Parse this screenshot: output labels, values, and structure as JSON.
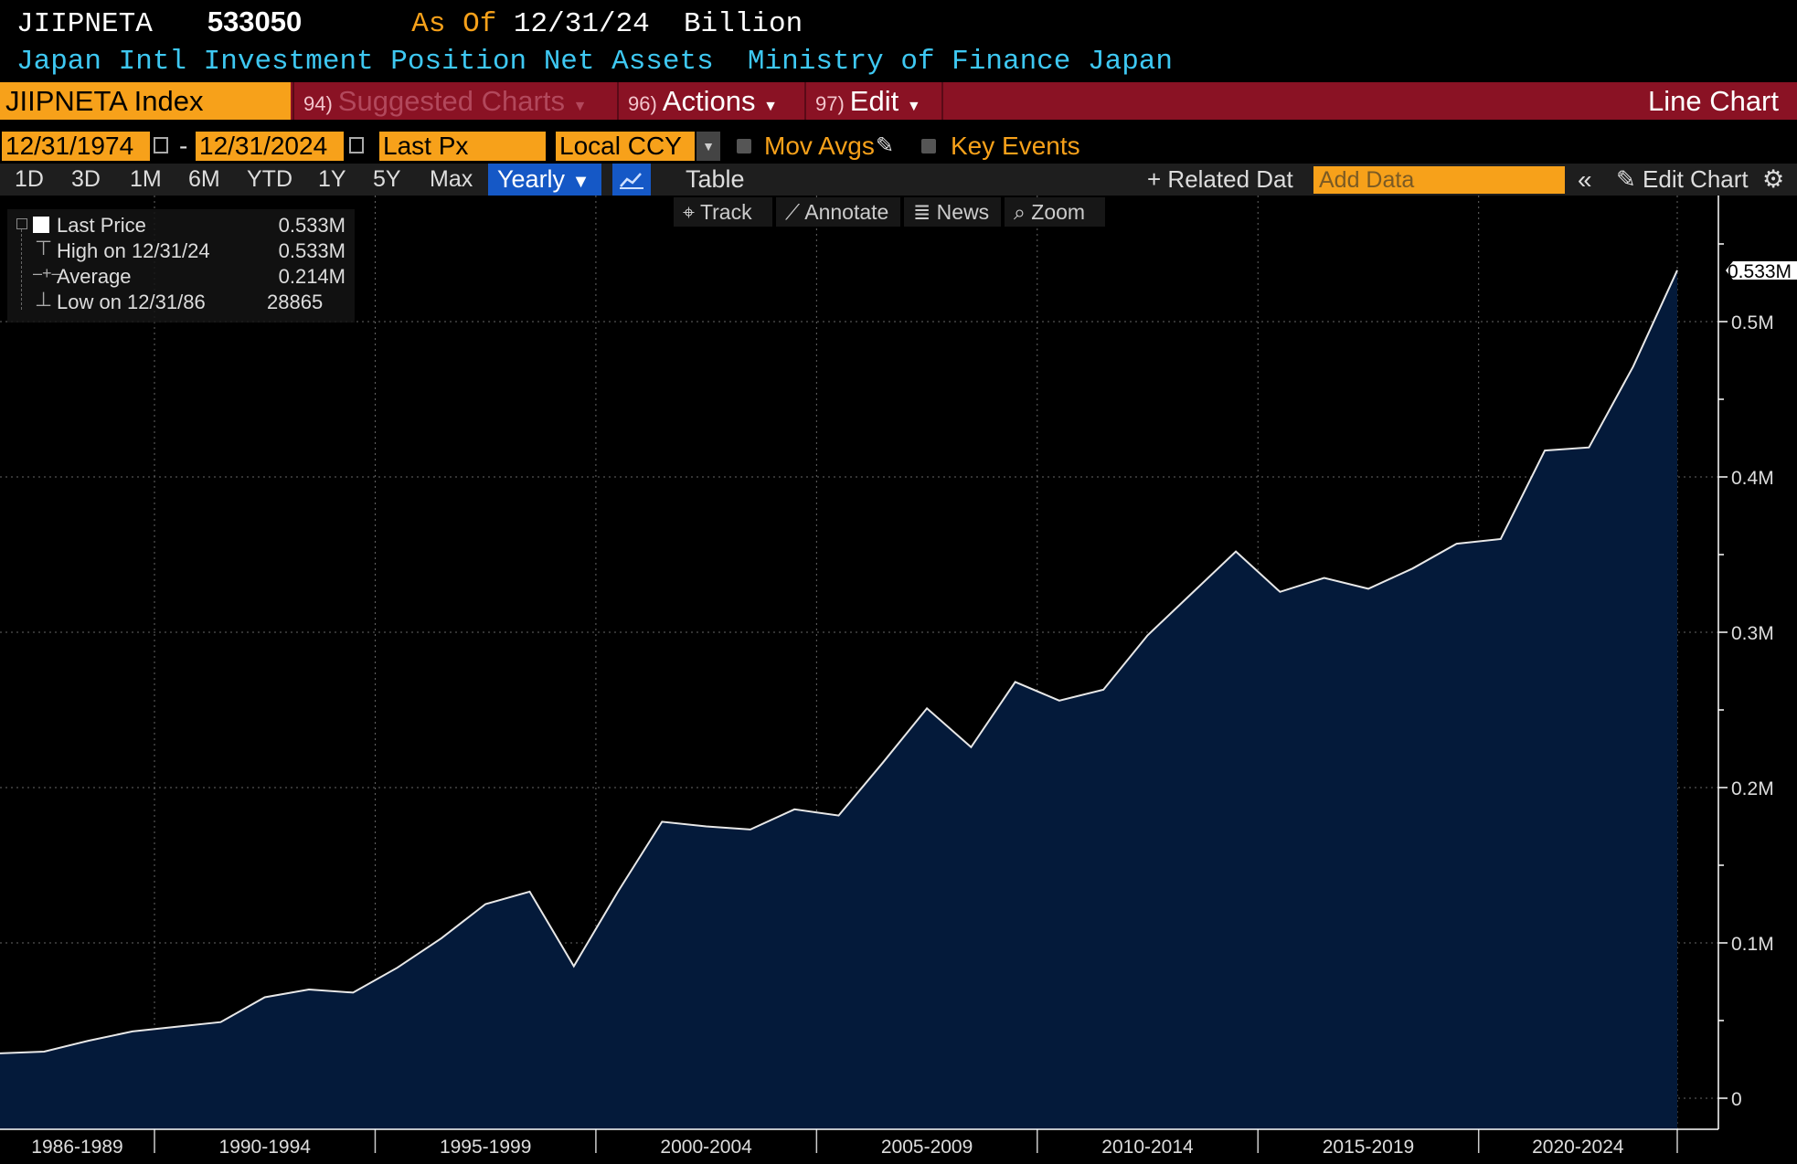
{
  "header": {
    "ticker": "JIIPNETA",
    "value": "533050",
    "as_of_label": "As Of",
    "as_of_date": "12/31/24",
    "unit": "Billion",
    "description": "Japan Intl Investment Position Net Assets  Ministry of Finance Japan"
  },
  "menu": {
    "security": "JIIPNETA Index",
    "suggested_num": "94)",
    "suggested_label": "Suggested Charts",
    "actions_num": "96)",
    "actions_label": "Actions",
    "edit_num": "97)",
    "edit_label": "Edit",
    "chart_type": "Line Chart"
  },
  "options": {
    "start_date": "12/31/1974",
    "dash": "-",
    "end_date": "12/31/2024",
    "field": "Last Px",
    "currency": "Local CCY",
    "mov_avgs": "Mov Avgs",
    "key_events": "Key Events"
  },
  "periods": [
    "1D",
    "3D",
    "1M",
    "6M",
    "YTD",
    "1Y",
    "5Y",
    "Max"
  ],
  "toolbar2": {
    "frequency": "Yearly",
    "table": "Table",
    "related": "Related Dat",
    "add_placeholder": "Add Data",
    "edit_chart": "Edit Chart"
  },
  "tools": [
    "Track",
    "Annotate",
    "News",
    "Zoom"
  ],
  "legend": {
    "last_label": "Last Price",
    "last_value": "0.533M",
    "high_label": "High on 12/31/24",
    "high_value": "0.533M",
    "avg_label": "Average",
    "avg_value": "0.214M",
    "low_label": "Low on 12/31/86",
    "low_value": "28865"
  },
  "colors": {
    "accent_orange": "#f7a11a",
    "menu_red": "#8a1224",
    "title_cyan": "#3ec8f2",
    "area_fill": "#041a3a",
    "selected_blue": "#1558c6"
  },
  "chart_data": {
    "type": "area",
    "last_label": "0.533M",
    "x": [
      1986,
      1987,
      1988,
      1989,
      1990,
      1991,
      1992,
      1993,
      1994,
      1995,
      1996,
      1997,
      1998,
      1999,
      2000,
      2001,
      2002,
      2003,
      2004,
      2005,
      2006,
      2007,
      2008,
      2009,
      2010,
      2011,
      2012,
      2013,
      2014,
      2015,
      2016,
      2017,
      2018,
      2019,
      2020,
      2021,
      2022,
      2023,
      2024
    ],
    "values": [
      28865,
      30000,
      37000,
      43000,
      46000,
      49000,
      65000,
      70000,
      68000,
      84000,
      103000,
      125000,
      133000,
      85000,
      133000,
      178000,
      175000,
      173000,
      186000,
      182000,
      216000,
      251000,
      226000,
      268000,
      256000,
      263000,
      298000,
      325000,
      352000,
      326000,
      335000,
      328000,
      341000,
      357000,
      360000,
      417000,
      419000,
      471000,
      533050
    ],
    "x_categories": [
      "1986-1989",
      "1990-1994",
      "1995-1999",
      "2000-2004",
      "2005-2009",
      "2010-2014",
      "2015-2019",
      "2020-2024"
    ],
    "y_ticks": [
      "0",
      "0.1M",
      "0.2M",
      "0.3M",
      "0.4M",
      "0.5M"
    ],
    "ylim": [
      0,
      560000
    ],
    "grid": true
  }
}
